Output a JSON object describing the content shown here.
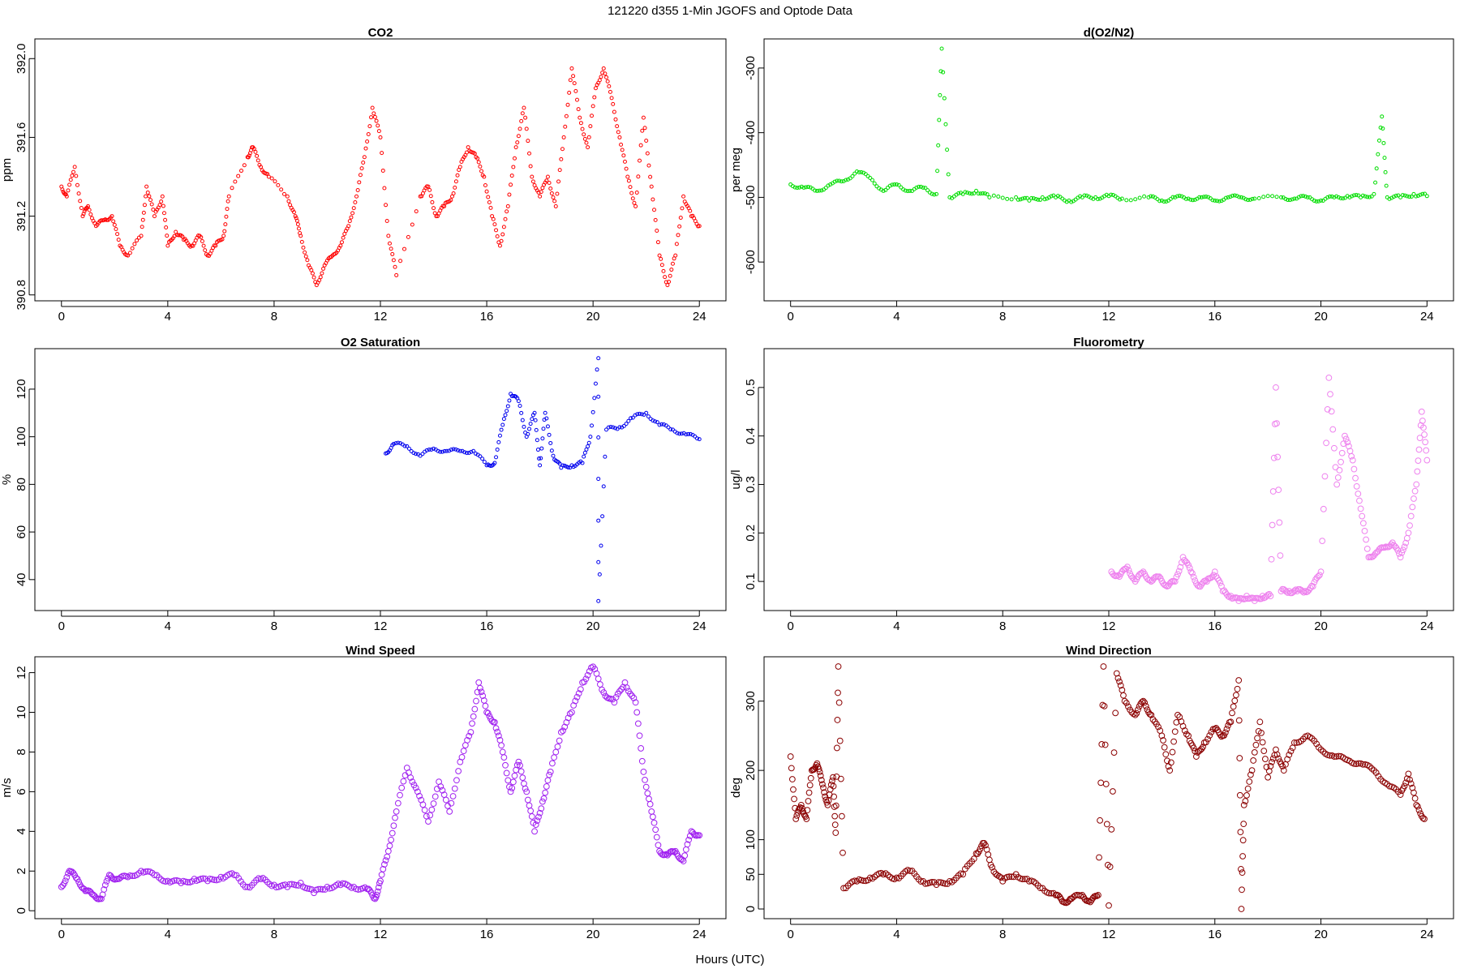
{
  "figure": {
    "title": "121220   d355   1-Min  JGOFS and Optode Data",
    "xlabel": "Hours (UTC)"
  },
  "chart_data": [
    {
      "type": "scatter",
      "title": "CO2",
      "ylabel": "ppm",
      "xlim": [
        -1,
        25
      ],
      "ylim": [
        390.77,
        392.1
      ],
      "xticks": [
        0,
        4,
        8,
        12,
        16,
        20,
        24
      ],
      "yticks": [
        390.8,
        391.2,
        391.6,
        392.0
      ],
      "ytick_labels": [
        "390.8",
        "391.2",
        "391.6",
        "392.0"
      ],
      "color": "#ff0000",
      "x_range": [
        0,
        24
      ],
      "marker": "small-circle",
      "x": [
        0.0,
        0.2,
        0.5,
        0.8,
        1.0,
        1.3,
        1.6,
        1.9,
        2.2,
        2.5,
        3.0,
        3.2,
        3.5,
        3.8,
        4.0,
        4.3,
        4.6,
        4.9,
        5.2,
        5.5,
        5.8,
        6.1,
        6.3,
        7.0,
        7.2,
        7.5,
        7.8,
        8.5,
        8.8,
        9.0,
        9.3,
        9.6,
        9.9,
        10.2,
        10.5,
        10.8,
        11.1,
        11.4,
        11.7,
        12.0,
        12.3,
        12.6,
        13.5,
        13.8,
        14.1,
        14.4,
        14.7,
        15.0,
        15.3,
        15.6,
        15.9,
        16.2,
        16.5,
        16.8,
        17.1,
        17.4,
        17.7,
        18.0,
        18.3,
        18.6,
        18.9,
        19.2,
        19.5,
        19.8,
        20.1,
        20.4,
        20.7,
        21.0,
        21.3,
        21.6,
        21.9,
        22.2,
        22.5,
        22.8,
        23.1,
        23.4,
        23.7,
        24.0
      ],
      "y": [
        391.35,
        391.3,
        391.45,
        391.2,
        391.25,
        391.15,
        391.18,
        391.2,
        391.05,
        391.0,
        391.1,
        391.35,
        391.2,
        391.3,
        391.05,
        391.12,
        391.08,
        391.05,
        391.1,
        391.0,
        391.05,
        391.1,
        391.3,
        391.5,
        391.55,
        391.45,
        391.4,
        391.3,
        391.2,
        391.1,
        390.95,
        390.85,
        390.95,
        391.0,
        391.05,
        391.15,
        391.3,
        391.5,
        391.75,
        391.6,
        391.1,
        390.9,
        391.3,
        391.35,
        391.2,
        391.25,
        391.3,
        391.45,
        391.55,
        391.5,
        391.4,
        391.2,
        391.05,
        391.25,
        391.55,
        391.75,
        391.4,
        391.3,
        391.4,
        391.25,
        391.6,
        391.95,
        391.7,
        391.55,
        391.85,
        391.95,
        391.8,
        391.6,
        391.4,
        391.25,
        391.7,
        391.35,
        391.0,
        390.85,
        391.0,
        391.3,
        391.2,
        391.15
      ]
    },
    {
      "type": "scatter",
      "title": "d(O2/N2)",
      "ylabel": "per meg",
      "xlim": [
        -1,
        25
      ],
      "ylim": [
        -660,
        -255
      ],
      "xticks": [
        0,
        4,
        8,
        12,
        16,
        20,
        24
      ],
      "yticks": [
        -600,
        -500,
        -400,
        -300
      ],
      "ytick_labels": [
        "-600",
        "-500",
        "-400",
        "-300"
      ],
      "color": "#00dd00",
      "x_range": [
        0,
        24
      ],
      "marker": "small-circle",
      "x": [
        0.0,
        0.5,
        1.0,
        1.5,
        2.0,
        2.5,
        3.0,
        3.5,
        4.0,
        4.5,
        5.0,
        5.5,
        5.7,
        6.0,
        6.5,
        7.0,
        7.5,
        8.5,
        9.0,
        9.5,
        10.0,
        10.5,
        11.0,
        11.5,
        12.0,
        12.5,
        13.5,
        14.0,
        14.5,
        15.0,
        15.5,
        16.0,
        16.5,
        17.0,
        17.5,
        18.5,
        19.0,
        19.5,
        20.0,
        20.5,
        21.0,
        21.5,
        22.0,
        22.3,
        22.5,
        23.0,
        23.5,
        24.0
      ],
      "y": [
        -480,
        -485,
        -490,
        -480,
        -475,
        -460,
        -470,
        -490,
        -480,
        -490,
        -485,
        -495,
        -270,
        -500,
        -495,
        -490,
        -500,
        -500,
        -505,
        -500,
        -500,
        -505,
        -500,
        -500,
        -498,
        -502,
        -500,
        -505,
        -500,
        -502,
        -500,
        -505,
        -500,
        -500,
        -502,
        -500,
        -502,
        -500,
        -505,
        -500,
        -498,
        -500,
        -495,
        -375,
        -500,
        -500,
        -495,
        -498
      ]
    },
    {
      "type": "scatter",
      "title": "O2 Saturation",
      "ylabel": "%",
      "xlim": [
        -1,
        25
      ],
      "ylim": [
        27,
        137
      ],
      "xticks": [
        0,
        4,
        8,
        12,
        16,
        20,
        24
      ],
      "yticks": [
        40,
        60,
        80,
        100,
        120
      ],
      "ytick_labels": [
        "40",
        "60",
        "80",
        "100",
        "120"
      ],
      "color": "#0000ee",
      "x_range": [
        12.2,
        24
      ],
      "marker": "small-circle",
      "x": [
        12.2,
        12.5,
        13.0,
        13.5,
        14.0,
        14.5,
        15.0,
        15.5,
        16.0,
        16.3,
        16.6,
        16.9,
        17.2,
        17.5,
        17.8,
        18.0,
        18.2,
        18.5,
        18.8,
        19.2,
        19.6,
        19.9,
        20.2,
        20.2,
        20.5,
        21.0,
        21.5,
        22.0,
        22.5,
        23.0,
        23.5,
        24.0
      ],
      "y": [
        93,
        97,
        96,
        92,
        95,
        94,
        94,
        94,
        88,
        89,
        105,
        118,
        115,
        100,
        110,
        88,
        110,
        92,
        87,
        88,
        89,
        100,
        133,
        31,
        103,
        104,
        108,
        110,
        105,
        103,
        101,
        99
      ]
    },
    {
      "type": "scatter",
      "title": "Fluorometry",
      "ylabel": "ug/l",
      "xlim": [
        -1,
        25
      ],
      "ylim": [
        0.04,
        0.58
      ],
      "xticks": [
        0,
        4,
        8,
        12,
        16,
        20,
        24
      ],
      "yticks": [
        0.1,
        0.2,
        0.3,
        0.4,
        0.5
      ],
      "ytick_labels": [
        "0.1",
        "0.2",
        "0.3",
        "0.4",
        "0.5"
      ],
      "color": "#ee82ee",
      "x_range": [
        12.1,
        24
      ],
      "marker": "circle",
      "x": [
        12.1,
        12.4,
        12.7,
        13.0,
        13.3,
        13.6,
        13.9,
        14.2,
        14.5,
        14.8,
        15.1,
        15.4,
        15.7,
        16.0,
        16.3,
        16.6,
        16.9,
        17.2,
        17.5,
        17.8,
        18.1,
        18.3,
        18.5,
        18.8,
        19.1,
        19.4,
        19.7,
        20.0,
        20.3,
        20.6,
        20.9,
        21.2,
        21.5,
        21.8,
        22.1,
        22.4,
        22.7,
        23.0,
        23.3,
        23.6,
        23.8,
        24.0
      ],
      "y": [
        0.12,
        0.11,
        0.13,
        0.1,
        0.12,
        0.1,
        0.11,
        0.09,
        0.1,
        0.15,
        0.12,
        0.09,
        0.1,
        0.12,
        0.08,
        0.07,
        0.06,
        0.07,
        0.06,
        0.07,
        0.07,
        0.5,
        0.08,
        0.08,
        0.08,
        0.08,
        0.09,
        0.12,
        0.52,
        0.3,
        0.4,
        0.35,
        0.25,
        0.15,
        0.16,
        0.17,
        0.18,
        0.15,
        0.2,
        0.3,
        0.45,
        0.35
      ]
    },
    {
      "type": "scatter",
      "title": "Wind Speed",
      "ylabel": "m/s",
      "xlim": [
        -1,
        25
      ],
      "ylim": [
        -0.4,
        12.8
      ],
      "xticks": [
        0,
        4,
        8,
        12,
        16,
        20,
        24
      ],
      "yticks": [
        0,
        2,
        4,
        6,
        8,
        10,
        12
      ],
      "ytick_labels": [
        "0",
        "2",
        "4",
        "6",
        "8",
        "10",
        "12"
      ],
      "color": "#a020f0",
      "x_range": [
        0,
        24
      ],
      "marker": "circle",
      "x": [
        0.0,
        0.3,
        0.6,
        0.9,
        1.2,
        1.5,
        1.8,
        2.1,
        2.5,
        3.0,
        3.5,
        4.0,
        4.5,
        5.0,
        5.5,
        6.0,
        6.5,
        7.0,
        7.5,
        8.0,
        8.5,
        9.0,
        9.5,
        10.0,
        10.5,
        11.0,
        11.5,
        11.8,
        12.0,
        12.3,
        12.6,
        13.0,
        13.4,
        13.8,
        14.2,
        14.6,
        15.0,
        15.4,
        15.7,
        16.0,
        16.3,
        16.6,
        16.9,
        17.2,
        17.5,
        17.8,
        18.1,
        18.4,
        18.8,
        19.2,
        19.6,
        20.0,
        20.4,
        20.8,
        21.2,
        21.6,
        21.9,
        22.2,
        22.5,
        22.8,
        23.1,
        23.4,
        23.7,
        24.0
      ],
      "y": [
        1.2,
        2.0,
        1.6,
        1.0,
        0.8,
        0.6,
        1.8,
        1.6,
        1.7,
        2.0,
        1.8,
        1.5,
        1.4,
        1.6,
        1.5,
        1.7,
        1.8,
        1.2,
        1.6,
        1.3,
        1.2,
        1.4,
        0.9,
        1.2,
        1.3,
        1.2,
        1.1,
        0.6,
        1.5,
        3.0,
        5.0,
        7.2,
        6.0,
        4.5,
        6.5,
        5.0,
        7.5,
        9.0,
        11.5,
        10.0,
        9.5,
        8.0,
        6.0,
        7.5,
        6.0,
        4.0,
        5.5,
        7.0,
        9.0,
        10.0,
        11.5,
        12.3,
        11.0,
        10.5,
        11.5,
        10.5,
        7.0,
        5.0,
        3.0,
        2.8,
        3.0,
        2.5,
        4.0,
        3.8
      ]
    },
    {
      "type": "scatter",
      "title": "Wind Direction",
      "ylabel": "deg",
      "xlim": [
        -1,
        25
      ],
      "ylim": [
        -14,
        364
      ],
      "xticks": [
        0,
        4,
        8,
        12,
        16,
        20,
        24
      ],
      "yticks": [
        0,
        50,
        100,
        200,
        300
      ],
      "ytick_labels": [
        "0",
        "50",
        "100",
        "200",
        "300"
      ],
      "color": "#8b0000",
      "x_range": [
        0,
        24
      ],
      "marker": "circle",
      "x": [
        0.0,
        0.2,
        0.4,
        0.6,
        0.8,
        1.0,
        1.2,
        1.4,
        1.6,
        1.7,
        1.8,
        2.0,
        2.5,
        3.0,
        3.5,
        4.0,
        4.5,
        5.0,
        5.5,
        6.0,
        6.5,
        7.0,
        7.3,
        7.6,
        8.0,
        8.5,
        9.0,
        9.5,
        10.0,
        10.3,
        10.6,
        11.0,
        11.3,
        11.6,
        11.8,
        12.0,
        12.3,
        12.6,
        13.0,
        13.3,
        13.6,
        14.0,
        14.3,
        14.6,
        15.0,
        15.3,
        15.6,
        16.0,
        16.3,
        16.6,
        16.9,
        17.0,
        17.1,
        17.4,
        17.7,
        18.0,
        18.3,
        18.6,
        19.0,
        19.5,
        20.0,
        20.5,
        21.0,
        21.5,
        22.0,
        22.5,
        23.0,
        23.3,
        23.6,
        23.9
      ],
      "y": [
        220,
        130,
        150,
        130,
        200,
        210,
        180,
        150,
        190,
        110,
        350,
        30,
        40,
        45,
        50,
        45,
        55,
        40,
        35,
        40,
        50,
        80,
        95,
        60,
        40,
        50,
        40,
        30,
        20,
        10,
        15,
        20,
        10,
        20,
        350,
        5,
        340,
        300,
        280,
        300,
        280,
        250,
        200,
        280,
        250,
        220,
        240,
        260,
        250,
        270,
        330,
        0,
        150,
        200,
        270,
        190,
        230,
        200,
        240,
        250,
        230,
        220,
        215,
        210,
        200,
        180,
        165,
        195,
        150,
        130
      ]
    }
  ]
}
